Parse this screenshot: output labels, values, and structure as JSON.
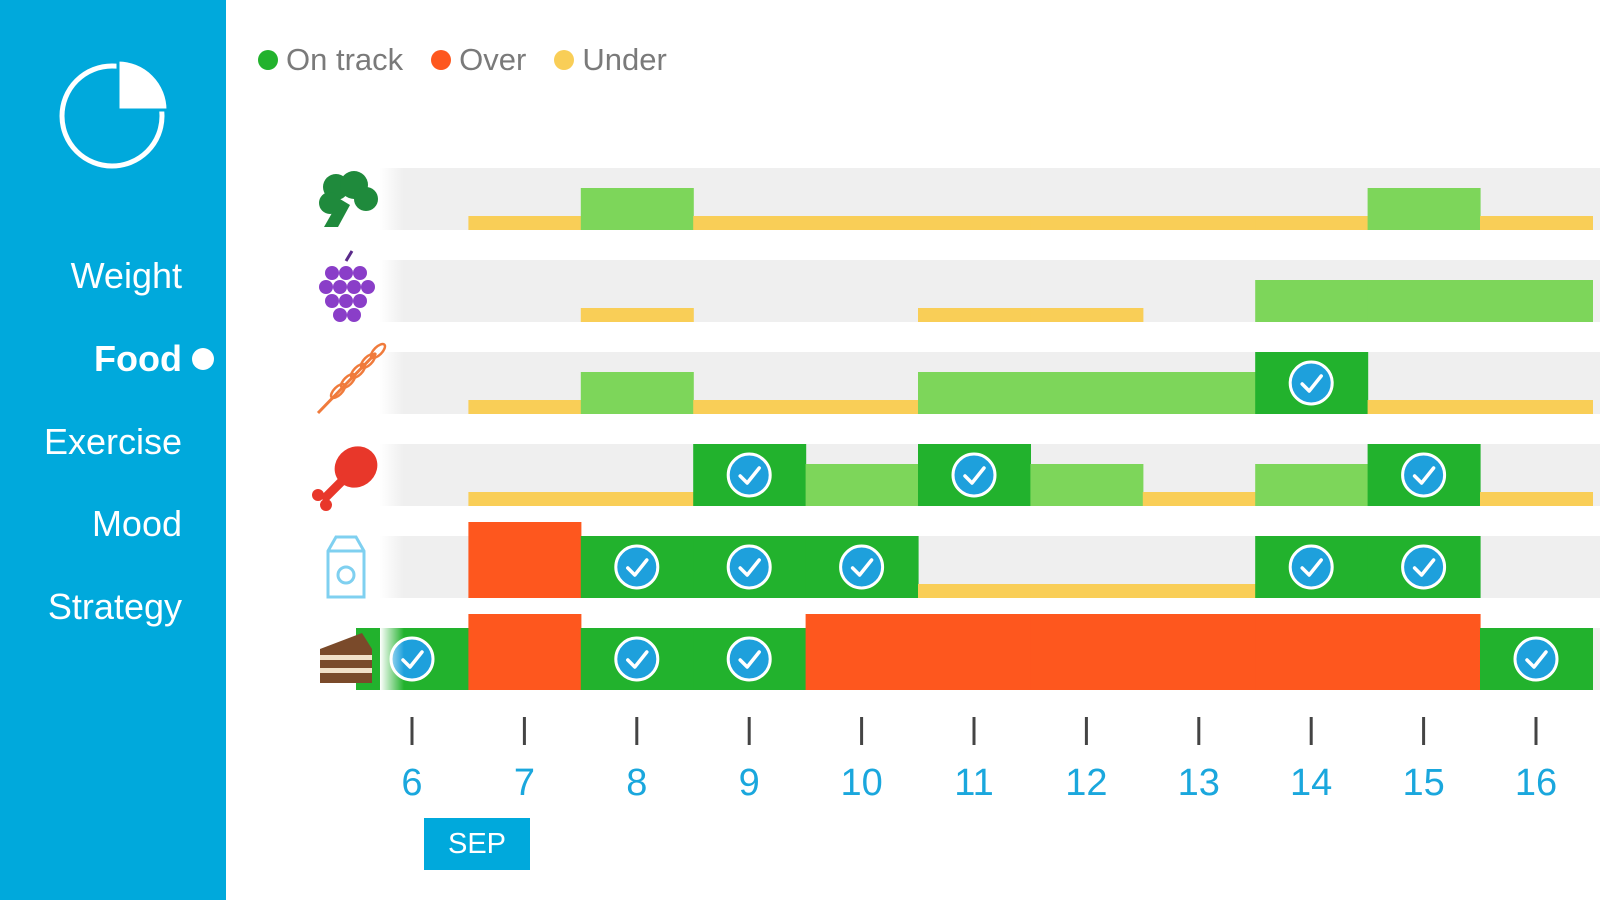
{
  "sidebar": {
    "logo_icon": "pie-chart-icon",
    "items": [
      {
        "label": "Weight",
        "active": false
      },
      {
        "label": "Food",
        "active": true
      },
      {
        "label": "Exercise",
        "active": false
      },
      {
        "label": "Mood",
        "active": false
      },
      {
        "label": "Strategy",
        "active": false
      }
    ]
  },
  "legend": {
    "on_track": {
      "label": "On track",
      "color": "#22b22d"
    },
    "over": {
      "label": "Over",
      "color": "#fe571e"
    },
    "under": {
      "label": "Under",
      "color": "#f9ce57"
    }
  },
  "colors": {
    "sidebar": "#00a9dc",
    "on_track_partial": "#7dd65a",
    "on_track_full": "#22b22d",
    "over": "#fe571e",
    "under": "#f9ce57",
    "row_background": "#efefef",
    "axis_labels": "#1aa7dd"
  },
  "chart_data": {
    "type": "bar",
    "x": [
      6,
      7,
      8,
      9,
      10,
      11,
      12,
      13,
      14,
      15,
      16
    ],
    "x_month": "SEP",
    "levels": {
      "under": "under",
      "partial": "partly on track",
      "full": "on track",
      "over": "over"
    },
    "rows": [
      {
        "icon": "broccoli-icon",
        "days": [
          "none",
          "under",
          "partial",
          "under",
          "under",
          "under",
          "under",
          "under",
          "under",
          "partial",
          "under"
        ]
      },
      {
        "icon": "grapes-icon",
        "days": [
          "none",
          "none",
          "under",
          "none",
          "none",
          "under",
          "under",
          "none",
          "partial",
          "partial",
          "partial"
        ]
      },
      {
        "icon": "wheat-icon",
        "days": [
          "none",
          "under",
          "partial",
          "under",
          "under",
          "partial",
          "partial",
          "partial",
          "full",
          "under",
          "under"
        ]
      },
      {
        "icon": "chicken-leg-icon",
        "days": [
          "none",
          "under",
          "under",
          "full",
          "partial",
          "full",
          "partial",
          "under",
          "partial",
          "full",
          "under"
        ]
      },
      {
        "icon": "milk-carton-icon",
        "days": [
          "none",
          "over",
          "full",
          "full",
          "full",
          "under",
          "under",
          "under",
          "full",
          "full",
          "none"
        ]
      },
      {
        "icon": "cake-icon",
        "days": [
          "full",
          "over",
          "full",
          "full",
          "over",
          "over",
          "over",
          "over",
          "over",
          "over",
          "full"
        ]
      }
    ]
  }
}
